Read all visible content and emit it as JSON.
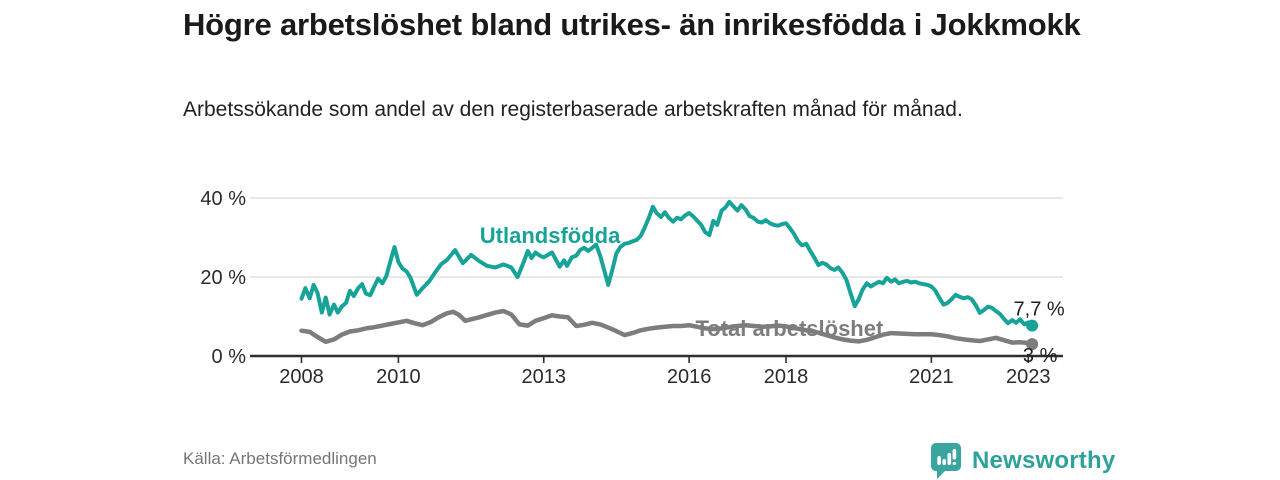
{
  "header": {
    "title": "Högre arbetslöshet bland utrikes- än inrikesfödda i Jokkmokk",
    "subtitle": "Arbetssökande som andel av den registerbaserade arbetskraften månad för månad."
  },
  "footer": {
    "source": "Källa: Arbetsförmedlingen",
    "brand": "Newsworthy"
  },
  "colors": {
    "accent_teal": "#17a398",
    "line_gray": "#7d7d7d",
    "grid": "#e0e0e0",
    "axis": "#2f2f2f",
    "text_dark": "#1a1a1a",
    "source_gray": "#767676",
    "brand_teal": "#2ea19b"
  },
  "chart_data": {
    "type": "line",
    "title": "Högre arbetslöshet bland utrikes- än inrikesfödda i Jokkmokk",
    "xlabel": "",
    "ylabel": "",
    "unit": "%",
    "grid": "horizontal",
    "legend_position": "inline-labels",
    "xlim": [
      2006.95,
      2023.7
    ],
    "ylim": [
      0,
      42
    ],
    "x_ticks": [
      2008,
      2010,
      2013,
      2016,
      2018,
      2021,
      2023
    ],
    "y_ticks": [
      {
        "value": 0,
        "label": "0 %"
      },
      {
        "value": 20,
        "label": "20 %"
      },
      {
        "value": 40,
        "label": "40 %"
      }
    ],
    "series": [
      {
        "name": "Utlandsfödda",
        "color": "#17a398",
        "width": 4,
        "end_label": "7,7 %",
        "end_value": 7.7,
        "label_at": [
          2013.13,
          28.6
        ],
        "points": [
          [
            2008.0,
            14.5
          ],
          [
            2008.08,
            17.2
          ],
          [
            2008.17,
            14.6
          ],
          [
            2008.25,
            18.0
          ],
          [
            2008.33,
            16.0
          ],
          [
            2008.42,
            11.0
          ],
          [
            2008.5,
            14.8
          ],
          [
            2008.58,
            10.5
          ],
          [
            2008.67,
            13.0
          ],
          [
            2008.75,
            11.0
          ],
          [
            2008.83,
            12.5
          ],
          [
            2008.92,
            13.5
          ],
          [
            2009.0,
            16.5
          ],
          [
            2009.08,
            15.2
          ],
          [
            2009.17,
            17.2
          ],
          [
            2009.25,
            18.2
          ],
          [
            2009.33,
            15.8
          ],
          [
            2009.42,
            15.4
          ],
          [
            2009.5,
            17.6
          ],
          [
            2009.58,
            19.6
          ],
          [
            2009.67,
            18.4
          ],
          [
            2009.75,
            20.2
          ],
          [
            2009.83,
            23.8
          ],
          [
            2009.92,
            27.6
          ],
          [
            2010.0,
            23.8
          ],
          [
            2010.08,
            22.2
          ],
          [
            2010.17,
            21.4
          ],
          [
            2010.25,
            19.8
          ],
          [
            2010.38,
            15.5
          ],
          [
            2010.5,
            17.2
          ],
          [
            2010.63,
            18.8
          ],
          [
            2010.75,
            21.0
          ],
          [
            2010.88,
            23.2
          ],
          [
            2011.0,
            24.3
          ],
          [
            2011.17,
            26.8
          ],
          [
            2011.33,
            23.5
          ],
          [
            2011.5,
            25.6
          ],
          [
            2011.67,
            24.0
          ],
          [
            2011.83,
            22.8
          ],
          [
            2012.0,
            22.4
          ],
          [
            2012.17,
            23.2
          ],
          [
            2012.33,
            22.4
          ],
          [
            2012.46,
            20.0
          ],
          [
            2012.58,
            23.6
          ],
          [
            2012.67,
            26.6
          ],
          [
            2012.75,
            24.8
          ],
          [
            2012.83,
            26.2
          ],
          [
            2012.92,
            25.4
          ],
          [
            2013.0,
            25.0
          ],
          [
            2013.17,
            26.2
          ],
          [
            2013.33,
            22.6
          ],
          [
            2013.42,
            24.2
          ],
          [
            2013.48,
            22.8
          ],
          [
            2013.58,
            25.0
          ],
          [
            2013.67,
            25.4
          ],
          [
            2013.75,
            26.8
          ],
          [
            2013.83,
            27.4
          ],
          [
            2013.92,
            26.6
          ],
          [
            2014.0,
            27.4
          ],
          [
            2014.08,
            28.2
          ],
          [
            2014.17,
            25.2
          ],
          [
            2014.33,
            18.0
          ],
          [
            2014.42,
            22.0
          ],
          [
            2014.5,
            26.0
          ],
          [
            2014.58,
            27.6
          ],
          [
            2014.67,
            28.4
          ],
          [
            2014.75,
            28.6
          ],
          [
            2014.83,
            29.0
          ],
          [
            2014.92,
            29.4
          ],
          [
            2015.0,
            30.4
          ],
          [
            2015.08,
            32.4
          ],
          [
            2015.17,
            35.0
          ],
          [
            2015.25,
            37.8
          ],
          [
            2015.33,
            36.2
          ],
          [
            2015.42,
            35.2
          ],
          [
            2015.5,
            36.4
          ],
          [
            2015.58,
            35.0
          ],
          [
            2015.67,
            34.0
          ],
          [
            2015.75,
            35.0
          ],
          [
            2015.83,
            34.6
          ],
          [
            2015.92,
            35.6
          ],
          [
            2016.0,
            36.2
          ],
          [
            2016.08,
            35.4
          ],
          [
            2016.17,
            34.2
          ],
          [
            2016.25,
            33.2
          ],
          [
            2016.33,
            31.4
          ],
          [
            2016.42,
            30.6
          ],
          [
            2016.5,
            34.2
          ],
          [
            2016.58,
            33.2
          ],
          [
            2016.67,
            36.8
          ],
          [
            2016.75,
            37.6
          ],
          [
            2016.83,
            39.0
          ],
          [
            2016.92,
            37.8
          ],
          [
            2017.0,
            36.8
          ],
          [
            2017.08,
            38.2
          ],
          [
            2017.17,
            37.0
          ],
          [
            2017.25,
            35.4
          ],
          [
            2017.33,
            35.0
          ],
          [
            2017.42,
            34.0
          ],
          [
            2017.5,
            33.8
          ],
          [
            2017.58,
            34.4
          ],
          [
            2017.67,
            33.6
          ],
          [
            2017.75,
            33.2
          ],
          [
            2017.83,
            33.0
          ],
          [
            2017.92,
            33.4
          ],
          [
            2018.0,
            33.6
          ],
          [
            2018.08,
            32.4
          ],
          [
            2018.17,
            30.8
          ],
          [
            2018.25,
            29.0
          ],
          [
            2018.33,
            28.0
          ],
          [
            2018.42,
            28.4
          ],
          [
            2018.5,
            26.6
          ],
          [
            2018.58,
            25.0
          ],
          [
            2018.67,
            23.0
          ],
          [
            2018.75,
            23.6
          ],
          [
            2018.83,
            23.2
          ],
          [
            2018.92,
            22.2
          ],
          [
            2019.0,
            21.8
          ],
          [
            2019.08,
            22.4
          ],
          [
            2019.17,
            21.0
          ],
          [
            2019.25,
            19.2
          ],
          [
            2019.33,
            16.0
          ],
          [
            2019.42,
            12.6
          ],
          [
            2019.5,
            14.4
          ],
          [
            2019.58,
            16.8
          ],
          [
            2019.67,
            18.4
          ],
          [
            2019.75,
            17.6
          ],
          [
            2019.83,
            18.2
          ],
          [
            2019.92,
            18.8
          ],
          [
            2020.0,
            18.4
          ],
          [
            2020.08,
            19.8
          ],
          [
            2020.17,
            18.8
          ],
          [
            2020.25,
            19.4
          ],
          [
            2020.33,
            18.4
          ],
          [
            2020.42,
            18.8
          ],
          [
            2020.5,
            19.0
          ],
          [
            2020.58,
            18.6
          ],
          [
            2020.67,
            18.8
          ],
          [
            2020.75,
            18.4
          ],
          [
            2020.83,
            18.2
          ],
          [
            2020.92,
            18.0
          ],
          [
            2021.0,
            17.6
          ],
          [
            2021.08,
            16.6
          ],
          [
            2021.17,
            14.6
          ],
          [
            2021.25,
            13.0
          ],
          [
            2021.33,
            13.4
          ],
          [
            2021.42,
            14.4
          ],
          [
            2021.5,
            15.5
          ],
          [
            2021.58,
            15.0
          ],
          [
            2021.67,
            14.6
          ],
          [
            2021.75,
            14.9
          ],
          [
            2021.83,
            14.4
          ],
          [
            2021.92,
            12.8
          ],
          [
            2022.0,
            10.9
          ],
          [
            2022.08,
            11.6
          ],
          [
            2022.17,
            12.5
          ],
          [
            2022.25,
            12.2
          ],
          [
            2022.33,
            11.4
          ],
          [
            2022.42,
            10.6
          ],
          [
            2022.5,
            9.4
          ],
          [
            2022.58,
            8.3
          ],
          [
            2022.67,
            9.1
          ],
          [
            2022.75,
            8.4
          ],
          [
            2022.83,
            9.3
          ],
          [
            2022.92,
            8.0
          ],
          [
            2023.0,
            8.5
          ],
          [
            2023.08,
            7.7
          ]
        ]
      },
      {
        "name": "Total arbetslöshet",
        "color": "#7d7d7d",
        "width": 4.5,
        "end_label": "3 %",
        "end_value": 3.0,
        "label_at": [
          2018.07,
          5.1
        ],
        "points": [
          [
            2008.0,
            6.4
          ],
          [
            2008.17,
            6.1
          ],
          [
            2008.33,
            4.8
          ],
          [
            2008.5,
            3.6
          ],
          [
            2008.67,
            4.2
          ],
          [
            2008.83,
            5.4
          ],
          [
            2009.0,
            6.2
          ],
          [
            2009.17,
            6.5
          ],
          [
            2009.33,
            7.0
          ],
          [
            2009.5,
            7.3
          ],
          [
            2009.67,
            7.7
          ],
          [
            2009.83,
            8.1
          ],
          [
            2010.0,
            8.5
          ],
          [
            2010.17,
            8.9
          ],
          [
            2010.33,
            8.3
          ],
          [
            2010.5,
            7.8
          ],
          [
            2010.67,
            8.6
          ],
          [
            2010.83,
            9.8
          ],
          [
            2011.0,
            10.8
          ],
          [
            2011.13,
            11.2
          ],
          [
            2011.25,
            10.4
          ],
          [
            2011.38,
            8.9
          ],
          [
            2011.5,
            9.3
          ],
          [
            2011.67,
            9.8
          ],
          [
            2011.83,
            10.4
          ],
          [
            2012.0,
            11.0
          ],
          [
            2012.17,
            11.4
          ],
          [
            2012.33,
            10.5
          ],
          [
            2012.5,
            8.0
          ],
          [
            2012.67,
            7.7
          ],
          [
            2012.83,
            8.9
          ],
          [
            2013.0,
            9.6
          ],
          [
            2013.17,
            10.3
          ],
          [
            2013.33,
            10.0
          ],
          [
            2013.5,
            9.8
          ],
          [
            2013.67,
            7.6
          ],
          [
            2013.83,
            7.9
          ],
          [
            2014.0,
            8.4
          ],
          [
            2014.17,
            8.0
          ],
          [
            2014.33,
            7.2
          ],
          [
            2014.5,
            6.3
          ],
          [
            2014.67,
            5.3
          ],
          [
            2014.83,
            5.8
          ],
          [
            2015.0,
            6.5
          ],
          [
            2015.17,
            6.9
          ],
          [
            2015.33,
            7.2
          ],
          [
            2015.5,
            7.4
          ],
          [
            2015.67,
            7.6
          ],
          [
            2015.83,
            7.6
          ],
          [
            2016.0,
            7.8
          ],
          [
            2016.17,
            7.4
          ],
          [
            2016.33,
            7.0
          ],
          [
            2016.5,
            6.8
          ],
          [
            2016.67,
            7.0
          ],
          [
            2016.83,
            7.3
          ],
          [
            2017.0,
            7.6
          ],
          [
            2017.17,
            7.8
          ],
          [
            2017.33,
            7.6
          ],
          [
            2017.5,
            7.4
          ],
          [
            2017.67,
            7.5
          ],
          [
            2017.83,
            7.7
          ],
          [
            2018.0,
            7.5
          ],
          [
            2018.17,
            7.1
          ],
          [
            2018.33,
            6.7
          ],
          [
            2018.5,
            6.3
          ],
          [
            2018.67,
            5.9
          ],
          [
            2018.83,
            5.3
          ],
          [
            2019.0,
            4.7
          ],
          [
            2019.17,
            4.2
          ],
          [
            2019.33,
            3.9
          ],
          [
            2019.5,
            3.7
          ],
          [
            2019.67,
            4.1
          ],
          [
            2019.83,
            4.7
          ],
          [
            2020.0,
            5.4
          ],
          [
            2020.17,
            5.8
          ],
          [
            2020.33,
            5.7
          ],
          [
            2020.5,
            5.6
          ],
          [
            2020.67,
            5.5
          ],
          [
            2020.83,
            5.5
          ],
          [
            2021.0,
            5.5
          ],
          [
            2021.17,
            5.3
          ],
          [
            2021.33,
            5.0
          ],
          [
            2021.5,
            4.5
          ],
          [
            2021.67,
            4.2
          ],
          [
            2021.83,
            4.0
          ],
          [
            2022.0,
            3.8
          ],
          [
            2022.17,
            4.2
          ],
          [
            2022.33,
            4.6
          ],
          [
            2022.5,
            4.0
          ],
          [
            2022.67,
            3.4
          ],
          [
            2022.83,
            3.5
          ],
          [
            2023.0,
            3.3
          ],
          [
            2023.08,
            3.0
          ]
        ]
      }
    ]
  }
}
